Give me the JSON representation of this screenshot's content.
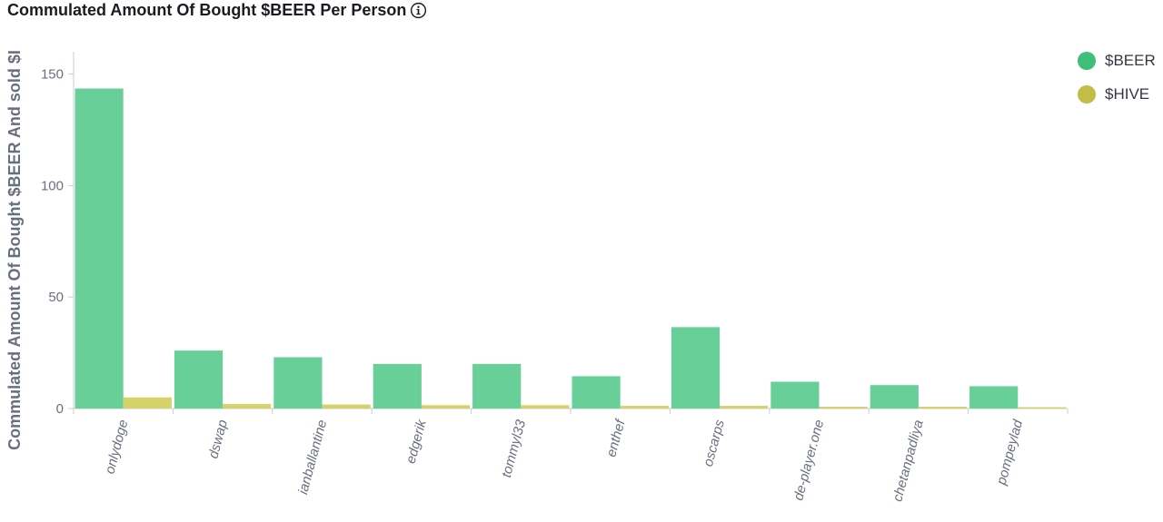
{
  "title": "Commulated Amount Of Bought $BEER Per Person",
  "icons": {
    "info": "info-icon"
  },
  "legend": [
    {
      "label": "$BEER",
      "color": "#3ebf7a"
    },
    {
      "label": "$HIVE",
      "color": "#c1bd46"
    }
  ],
  "chart_data": {
    "type": "bar",
    "title": "Commulated Amount Of Bought $BEER Per Person",
    "ylabel": "Commulated Amount Of Bought $BEER And sold $I",
    "xlabel": "",
    "ylim": [
      0,
      160
    ],
    "yticks": [
      0,
      50,
      100,
      150
    ],
    "categories": [
      "onlydoge",
      "dswap",
      "ianballantine",
      "edgerik",
      "tommyl33",
      "enthef",
      "oscarps",
      "de-player.one",
      "chetanpadliya",
      "pompeylad"
    ],
    "series": [
      {
        "name": "$BEER",
        "color": "#68cf98",
        "values": [
          143.5,
          26,
          23,
          20,
          20,
          14.5,
          36.5,
          12,
          10.5,
          10
        ]
      },
      {
        "name": "$HIVE",
        "color": "#d6d26a",
        "values": [
          5,
          2,
          1.8,
          1.5,
          1.5,
          1.2,
          1.2,
          0.8,
          0.8,
          0.6
        ]
      }
    ],
    "legend_position": "top-right",
    "grid": false
  }
}
